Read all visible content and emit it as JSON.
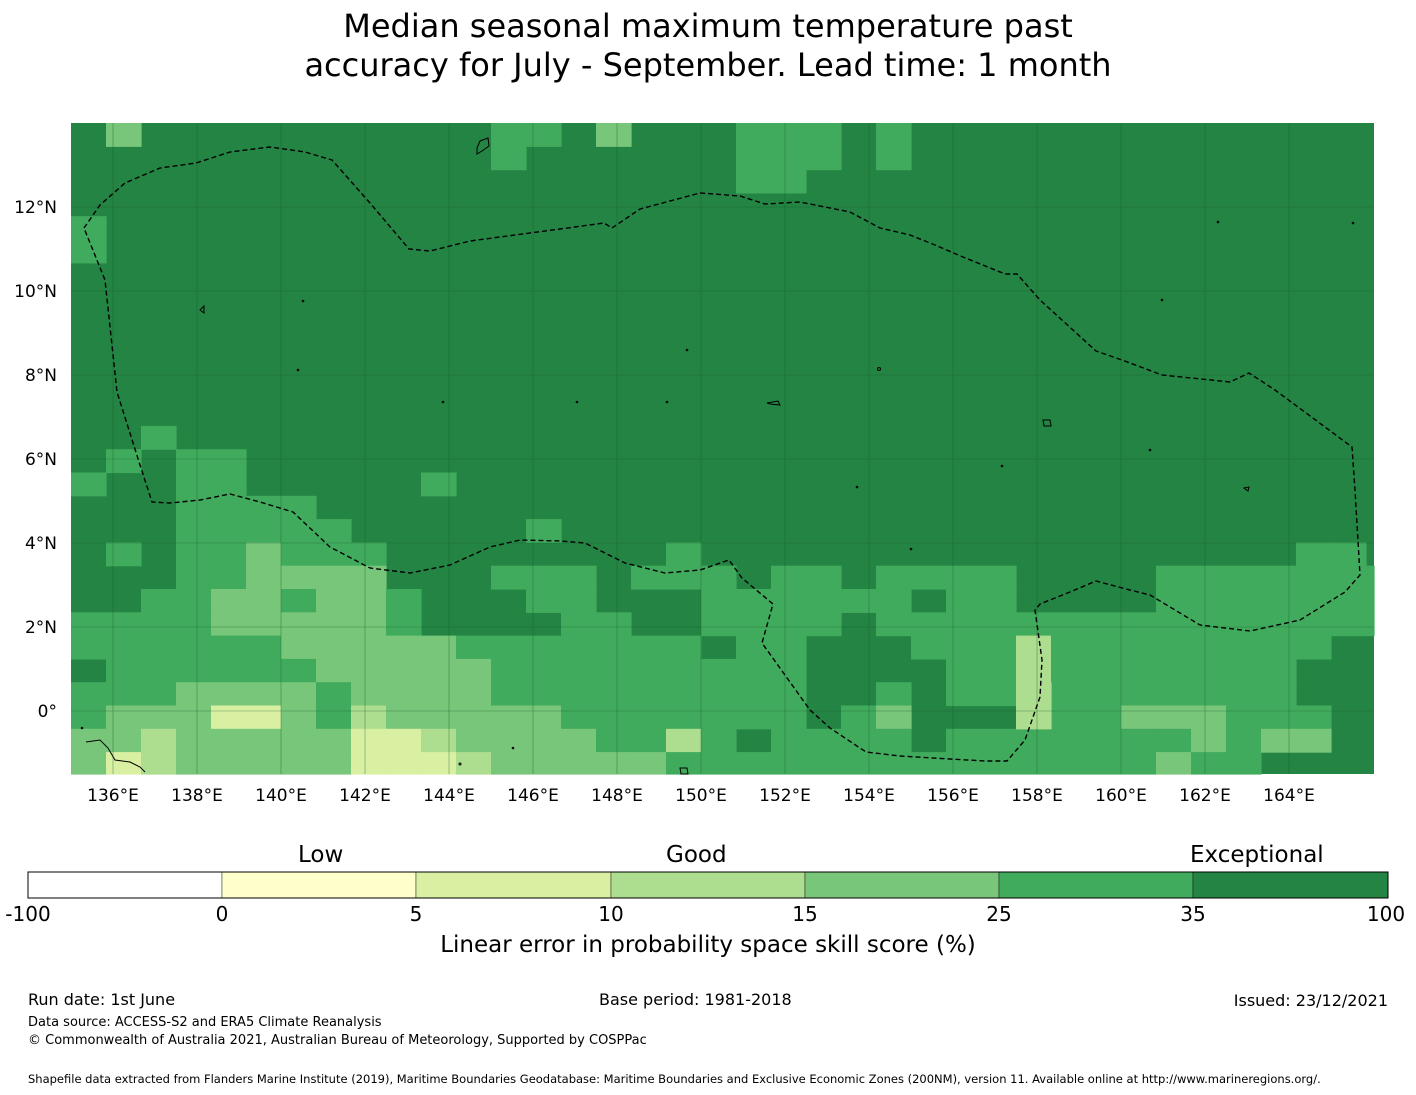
{
  "title": {
    "line1": "Median seasonal maximum temperature past",
    "line2": "accuracy for July - September. Lead time: 1 month"
  },
  "map": {
    "lon_labels": [
      "136°E",
      "138°E",
      "140°E",
      "142°E",
      "144°E",
      "146°E",
      "148°E",
      "150°E",
      "152°E",
      "154°E",
      "156°E",
      "158°E",
      "160°E",
      "162°E",
      "164°E"
    ],
    "lat_labels": [
      "12°N",
      "10°N",
      "8°N",
      "6°N",
      "4°N",
      "2°N",
      "0°"
    ],
    "base_color": "#238443",
    "palette": {
      "1": "#ffffcc",
      "2": "#d9f0a3",
      "3": "#addd8e",
      "4": "#78c679",
      "5": "#41ab5d",
      "6": "#238443"
    }
  },
  "colorbar": {
    "categories": [
      "Low",
      "Good",
      "Exceptional"
    ],
    "ticks": [
      "-100",
      "0",
      "5",
      "10",
      "15",
      "25",
      "35",
      "100"
    ],
    "colors": [
      "#ffffff",
      "#ffffcc",
      "#d9f0a3",
      "#addd8e",
      "#78c679",
      "#41ab5d",
      "#238443"
    ],
    "label": "Linear error in probability space skill score (%)"
  },
  "footer": {
    "run_date": "Run date: 1st June",
    "base_period": "Base period: 1981-2018",
    "issued": "Issued: 23/12/2021",
    "data_source": "Data source: ACCESS-S2 and ERA5 Climate Reanalysis",
    "copyright": "© Commonwealth of Australia 2021, Australian Bureau of Meteorology, Supported by COSPPac",
    "shapefile": "Shapefile data extracted from Flanders Marine Institute (2019), Maritime Boundaries Geodatabase: Maritime Boundaries and Exclusive Economic Zones (200NM), version 11. Available online at http://www.marineregions.org/."
  }
}
